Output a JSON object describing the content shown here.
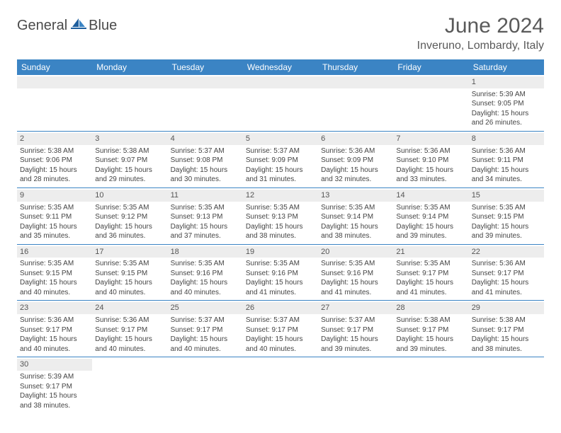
{
  "brand": {
    "word1": "General",
    "word2": "Blue"
  },
  "title": "June 2024",
  "subtitle": "Inveruno, Lombardy, Italy",
  "colors": {
    "header_bg": "#3b84c4",
    "header_text": "#ffffff",
    "daynum_bg": "#ededed",
    "cell_text": "#444444",
    "rule": "#3b84c4"
  },
  "weekdays": [
    "Sunday",
    "Monday",
    "Tuesday",
    "Wednesday",
    "Thursday",
    "Friday",
    "Saturday"
  ],
  "weeks": [
    [
      null,
      null,
      null,
      null,
      null,
      null,
      {
        "d": "1",
        "sr": "5:39 AM",
        "ss": "9:05 PM",
        "dl": "15 hours and 26 minutes."
      }
    ],
    [
      {
        "d": "2",
        "sr": "5:38 AM",
        "ss": "9:06 PM",
        "dl": "15 hours and 28 minutes."
      },
      {
        "d": "3",
        "sr": "5:38 AM",
        "ss": "9:07 PM",
        "dl": "15 hours and 29 minutes."
      },
      {
        "d": "4",
        "sr": "5:37 AM",
        "ss": "9:08 PM",
        "dl": "15 hours and 30 minutes."
      },
      {
        "d": "5",
        "sr": "5:37 AM",
        "ss": "9:09 PM",
        "dl": "15 hours and 31 minutes."
      },
      {
        "d": "6",
        "sr": "5:36 AM",
        "ss": "9:09 PM",
        "dl": "15 hours and 32 minutes."
      },
      {
        "d": "7",
        "sr": "5:36 AM",
        "ss": "9:10 PM",
        "dl": "15 hours and 33 minutes."
      },
      {
        "d": "8",
        "sr": "5:36 AM",
        "ss": "9:11 PM",
        "dl": "15 hours and 34 minutes."
      }
    ],
    [
      {
        "d": "9",
        "sr": "5:35 AM",
        "ss": "9:11 PM",
        "dl": "15 hours and 35 minutes."
      },
      {
        "d": "10",
        "sr": "5:35 AM",
        "ss": "9:12 PM",
        "dl": "15 hours and 36 minutes."
      },
      {
        "d": "11",
        "sr": "5:35 AM",
        "ss": "9:13 PM",
        "dl": "15 hours and 37 minutes."
      },
      {
        "d": "12",
        "sr": "5:35 AM",
        "ss": "9:13 PM",
        "dl": "15 hours and 38 minutes."
      },
      {
        "d": "13",
        "sr": "5:35 AM",
        "ss": "9:14 PM",
        "dl": "15 hours and 38 minutes."
      },
      {
        "d": "14",
        "sr": "5:35 AM",
        "ss": "9:14 PM",
        "dl": "15 hours and 39 minutes."
      },
      {
        "d": "15",
        "sr": "5:35 AM",
        "ss": "9:15 PM",
        "dl": "15 hours and 39 minutes."
      }
    ],
    [
      {
        "d": "16",
        "sr": "5:35 AM",
        "ss": "9:15 PM",
        "dl": "15 hours and 40 minutes."
      },
      {
        "d": "17",
        "sr": "5:35 AM",
        "ss": "9:15 PM",
        "dl": "15 hours and 40 minutes."
      },
      {
        "d": "18",
        "sr": "5:35 AM",
        "ss": "9:16 PM",
        "dl": "15 hours and 40 minutes."
      },
      {
        "d": "19",
        "sr": "5:35 AM",
        "ss": "9:16 PM",
        "dl": "15 hours and 41 minutes."
      },
      {
        "d": "20",
        "sr": "5:35 AM",
        "ss": "9:16 PM",
        "dl": "15 hours and 41 minutes."
      },
      {
        "d": "21",
        "sr": "5:35 AM",
        "ss": "9:17 PM",
        "dl": "15 hours and 41 minutes."
      },
      {
        "d": "22",
        "sr": "5:36 AM",
        "ss": "9:17 PM",
        "dl": "15 hours and 41 minutes."
      }
    ],
    [
      {
        "d": "23",
        "sr": "5:36 AM",
        "ss": "9:17 PM",
        "dl": "15 hours and 40 minutes."
      },
      {
        "d": "24",
        "sr": "5:36 AM",
        "ss": "9:17 PM",
        "dl": "15 hours and 40 minutes."
      },
      {
        "d": "25",
        "sr": "5:37 AM",
        "ss": "9:17 PM",
        "dl": "15 hours and 40 minutes."
      },
      {
        "d": "26",
        "sr": "5:37 AM",
        "ss": "9:17 PM",
        "dl": "15 hours and 40 minutes."
      },
      {
        "d": "27",
        "sr": "5:37 AM",
        "ss": "9:17 PM",
        "dl": "15 hours and 39 minutes."
      },
      {
        "d": "28",
        "sr": "5:38 AM",
        "ss": "9:17 PM",
        "dl": "15 hours and 39 minutes."
      },
      {
        "d": "29",
        "sr": "5:38 AM",
        "ss": "9:17 PM",
        "dl": "15 hours and 38 minutes."
      }
    ],
    [
      {
        "d": "30",
        "sr": "5:39 AM",
        "ss": "9:17 PM",
        "dl": "15 hours and 38 minutes."
      },
      null,
      null,
      null,
      null,
      null,
      null
    ]
  ],
  "labels": {
    "sunrise": "Sunrise:",
    "sunset": "Sunset:",
    "daylight": "Daylight:"
  }
}
